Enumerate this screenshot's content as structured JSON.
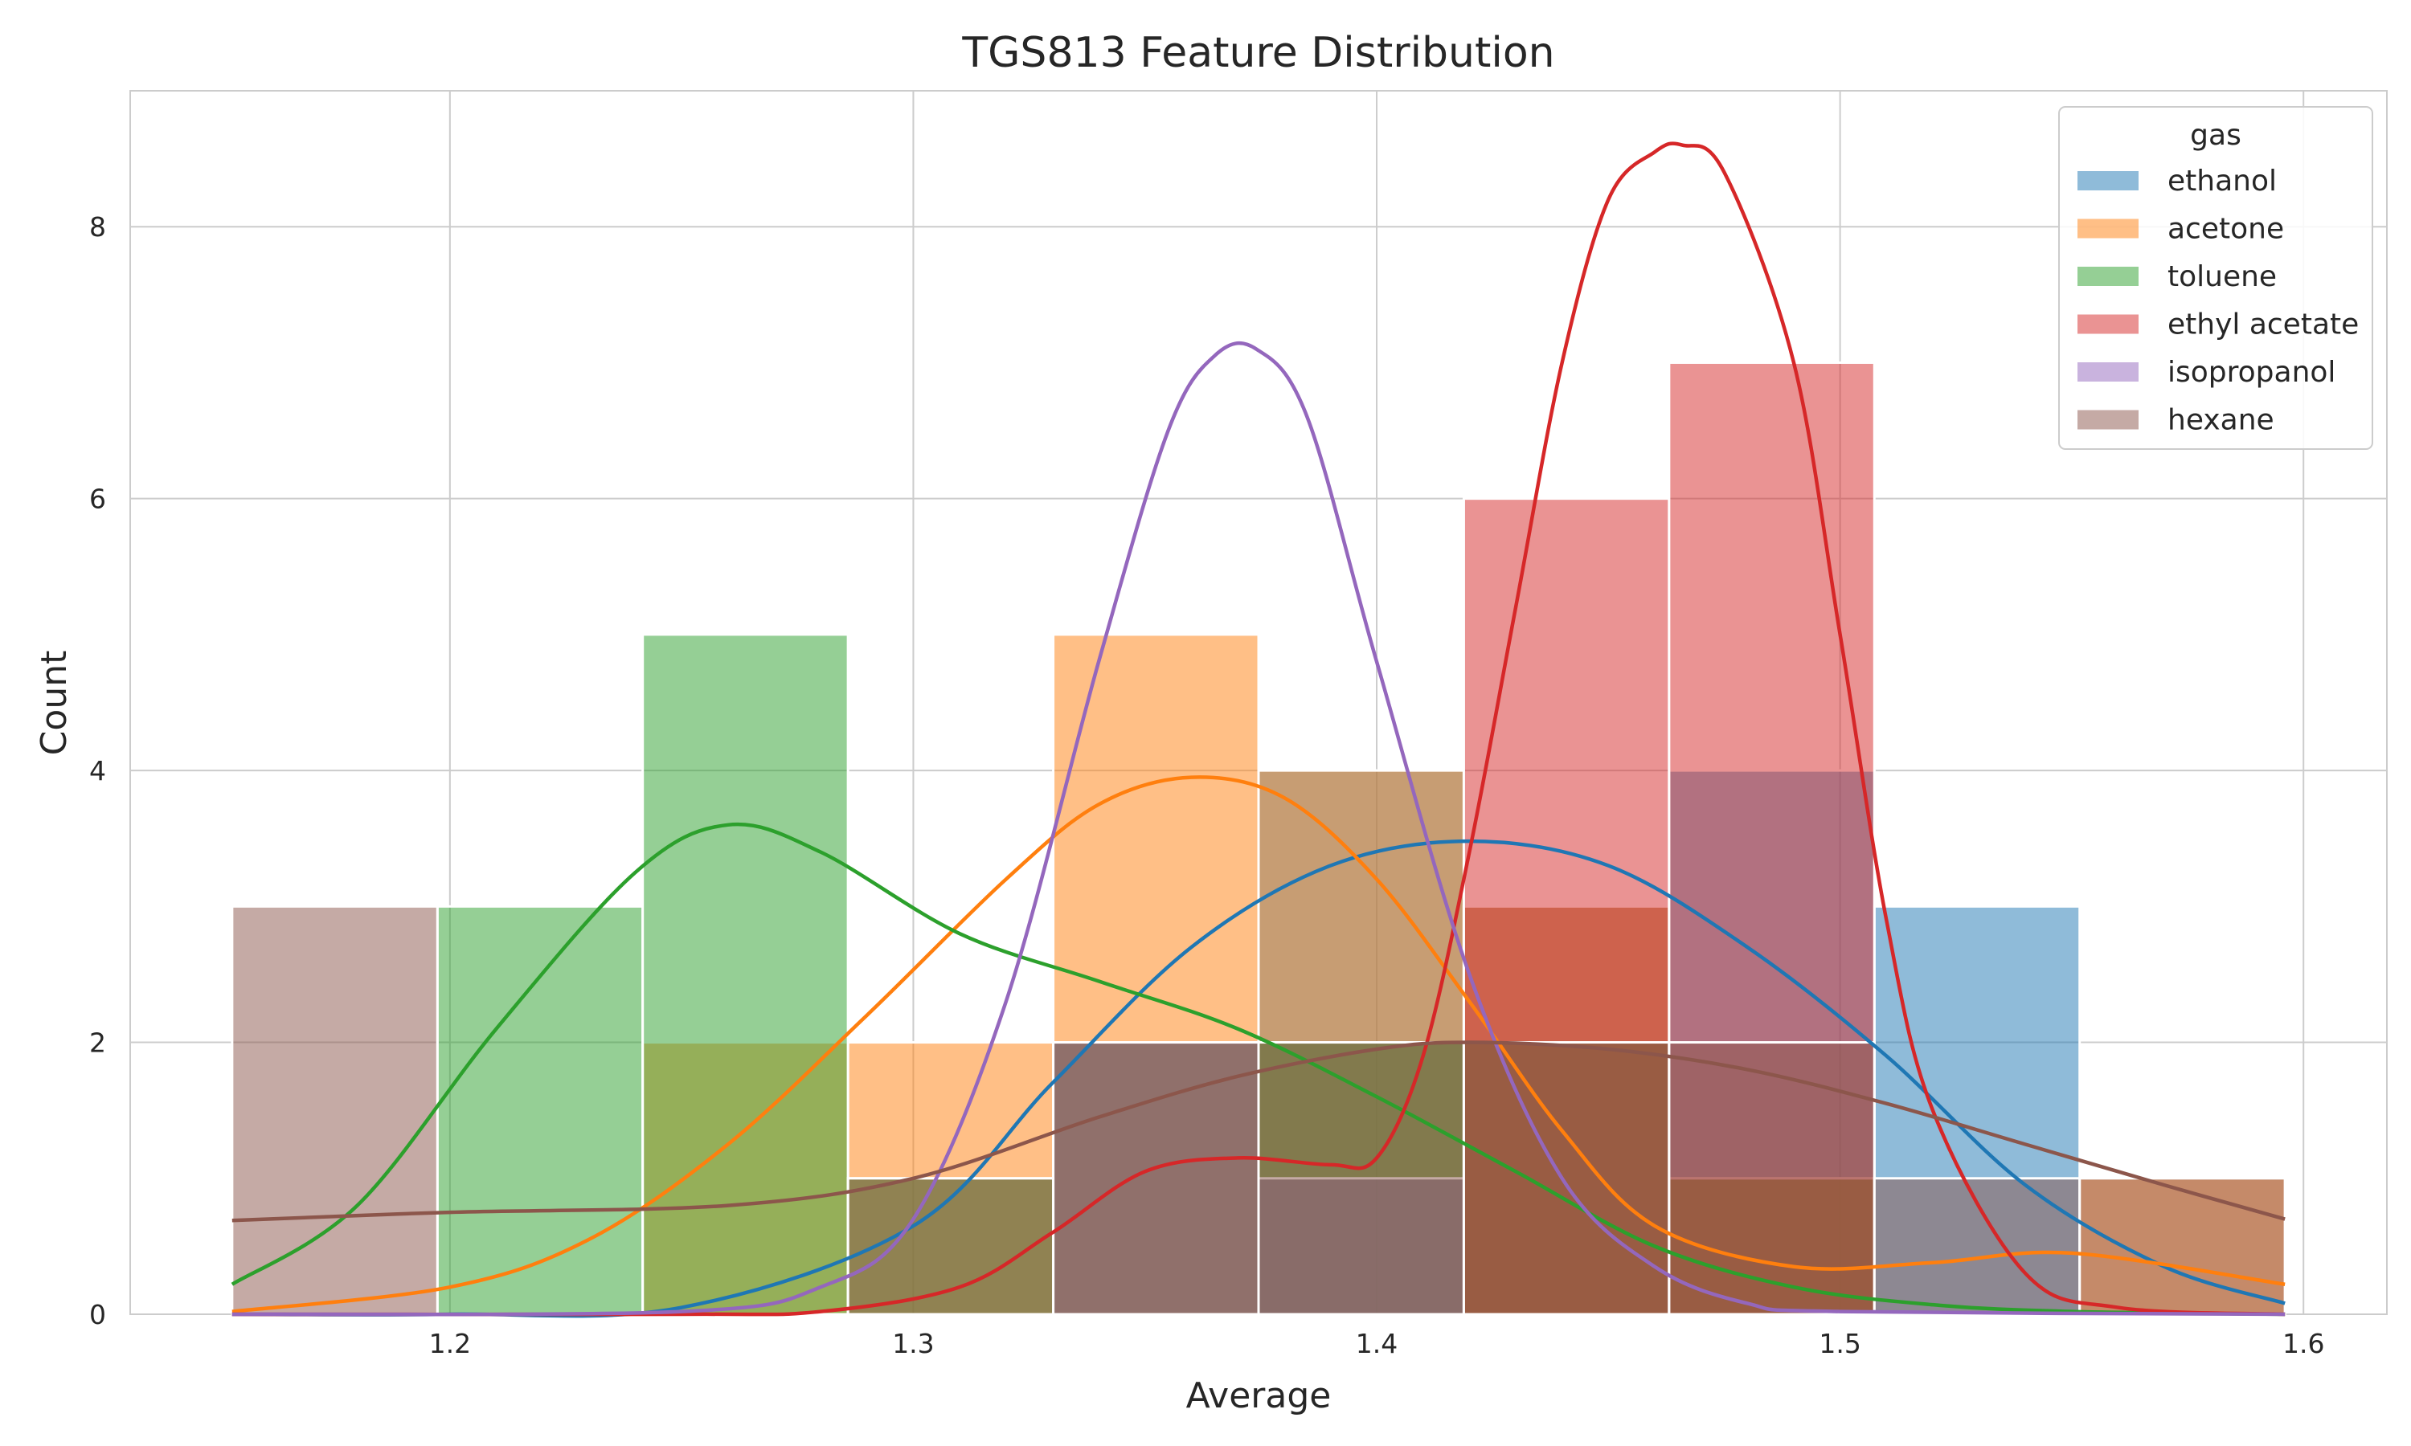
{
  "chart_data": {
    "type": "histogram",
    "title": "TGS813 Feature Distribution",
    "xlabel": "Average",
    "ylabel": "Count",
    "xlim": [
      1.131,
      1.618
    ],
    "ylim": [
      0,
      9.0
    ],
    "x_ticks": [
      1.2,
      1.3,
      1.4,
      1.5,
      1.6
    ],
    "y_ticks": [
      0,
      2,
      4,
      6,
      8
    ],
    "x_tick_labels": [
      "1.2",
      "1.3",
      "1.4",
      "1.5",
      "1.6"
    ],
    "y_tick_labels": [
      "0",
      "2",
      "4",
      "6",
      "8"
    ],
    "grid": true,
    "legend": {
      "title": "gas",
      "placement": "top-right"
    },
    "bin_edges": [
      1.153,
      1.1973,
      1.2416,
      1.2859,
      1.3302,
      1.3745,
      1.4188,
      1.4631,
      1.5074,
      1.5517,
      1.596
    ],
    "series": [
      {
        "name": "ethanol",
        "color": "#1f77b4",
        "counts": [
          0,
          0,
          0,
          0,
          0,
          4,
          3,
          4,
          3,
          0
        ],
        "kde": {
          "x": [
            1.153,
            1.2,
            1.25,
            1.3,
            1.33,
            1.36,
            1.39,
            1.42,
            1.45,
            1.48,
            1.51,
            1.54,
            1.57,
            1.596
          ],
          "y": [
            0.0,
            0.0,
            0.05,
            0.65,
            1.7,
            2.7,
            3.3,
            3.48,
            3.3,
            2.7,
            1.9,
            0.95,
            0.35,
            0.08
          ]
        }
      },
      {
        "name": "acetone",
        "color": "#ff7f0e",
        "counts": [
          0,
          0,
          2,
          2,
          5,
          4,
          3,
          1,
          0,
          1
        ],
        "kde": {
          "x": [
            1.153,
            1.2,
            1.23,
            1.26,
            1.29,
            1.32,
            1.34,
            1.36,
            1.38,
            1.4,
            1.42,
            1.44,
            1.46,
            1.49,
            1.52,
            1.55,
            1.596
          ],
          "y": [
            0.02,
            0.2,
            0.55,
            1.25,
            2.2,
            3.2,
            3.75,
            3.95,
            3.8,
            3.2,
            2.3,
            1.35,
            0.65,
            0.35,
            0.38,
            0.45,
            0.22
          ]
        }
      },
      {
        "name": "toluene",
        "color": "#2ca02c",
        "counts": [
          0,
          3,
          5,
          1,
          2,
          2,
          2,
          1,
          0,
          0
        ],
        "kde": {
          "x": [
            1.153,
            1.18,
            1.21,
            1.24,
            1.26,
            1.28,
            1.31,
            1.34,
            1.37,
            1.4,
            1.43,
            1.46,
            1.49,
            1.52,
            1.55,
            1.596
          ],
          "y": [
            0.22,
            0.8,
            2.1,
            3.25,
            3.6,
            3.4,
            2.8,
            2.45,
            2.1,
            1.6,
            1.05,
            0.5,
            0.2,
            0.07,
            0.02,
            0.0
          ]
        }
      },
      {
        "name": "ethyl acetate",
        "color": "#d62728",
        "counts": [
          0,
          0,
          0,
          0,
          0,
          0,
          6,
          7,
          0,
          0
        ],
        "kde": {
          "x": [
            1.153,
            1.25,
            1.28,
            1.31,
            1.33,
            1.35,
            1.37,
            1.39,
            1.4,
            1.41,
            1.42,
            1.43,
            1.44,
            1.45,
            1.46,
            1.466,
            1.475,
            1.49,
            1.5,
            1.51,
            1.52,
            1.54,
            1.56,
            1.596
          ],
          "y": [
            0.0,
            0.0,
            0.02,
            0.2,
            0.6,
            1.05,
            1.15,
            1.1,
            1.15,
            1.9,
            3.4,
            5.2,
            7.0,
            8.2,
            8.55,
            8.6,
            8.4,
            7.0,
            5.0,
            2.9,
            1.5,
            0.3,
            0.05,
            0.0
          ]
        }
      },
      {
        "name": "isopropanol",
        "color": "#9467bd",
        "counts": [
          0,
          0,
          0,
          0,
          2,
          1,
          0,
          0,
          0,
          0
        ],
        "kde": {
          "x": [
            1.153,
            1.25,
            1.28,
            1.3,
            1.32,
            1.34,
            1.355,
            1.365,
            1.374,
            1.385,
            1.4,
            1.42,
            1.44,
            1.46,
            1.48,
            1.5,
            1.596
          ],
          "y": [
            0.0,
            0.02,
            0.2,
            0.7,
            2.3,
            4.8,
            6.5,
            7.05,
            7.1,
            6.6,
            4.8,
            2.5,
            1.0,
            0.35,
            0.08,
            0.02,
            0.0
          ]
        }
      },
      {
        "name": "hexane",
        "color": "#8c564b",
        "counts": [
          3,
          0,
          0,
          1,
          2,
          2,
          2,
          2,
          1,
          1
        ],
        "kde": {
          "x": [
            1.153,
            1.2,
            1.26,
            1.3,
            1.34,
            1.37,
            1.4,
            1.42,
            1.45,
            1.48,
            1.51,
            1.54,
            1.57,
            1.596
          ],
          "y": [
            0.69,
            0.75,
            0.8,
            1.0,
            1.45,
            1.75,
            1.95,
            2.0,
            1.95,
            1.8,
            1.55,
            1.25,
            0.95,
            0.7
          ]
        }
      }
    ]
  }
}
